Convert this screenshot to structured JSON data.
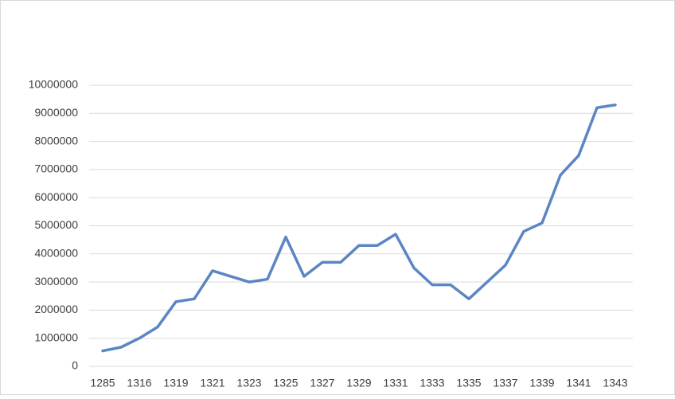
{
  "chart_data": {
    "type": "line",
    "categories": [
      "1285",
      null,
      "1316",
      null,
      "1319",
      null,
      "1321",
      null,
      "1323",
      null,
      "1325",
      null,
      "1327",
      null,
      "1329",
      null,
      "1331",
      null,
      "1333",
      null,
      "1335",
      null,
      "1337",
      null,
      "1339",
      null,
      "1341",
      null,
      "1343"
    ],
    "series": [
      {
        "color": "#5b86c3",
        "values": [
          550000,
          680000,
          1000000,
          1400000,
          2300000,
          2400000,
          3400000,
          3200000,
          3000000,
          3100000,
          4600000,
          3200000,
          3700000,
          3700000,
          4300000,
          4300000,
          4700000,
          3500000,
          2900000,
          2900000,
          2400000,
          3000000,
          3600000,
          4800000,
          5100000,
          6800000,
          7500000,
          9200000,
          9300000
        ]
      }
    ],
    "ylim": [
      0,
      10000000
    ],
    "yticks": [
      0,
      1000000,
      2000000,
      3000000,
      4000000,
      5000000,
      6000000,
      7000000,
      8000000,
      9000000,
      10000000
    ],
    "grid": true
  }
}
